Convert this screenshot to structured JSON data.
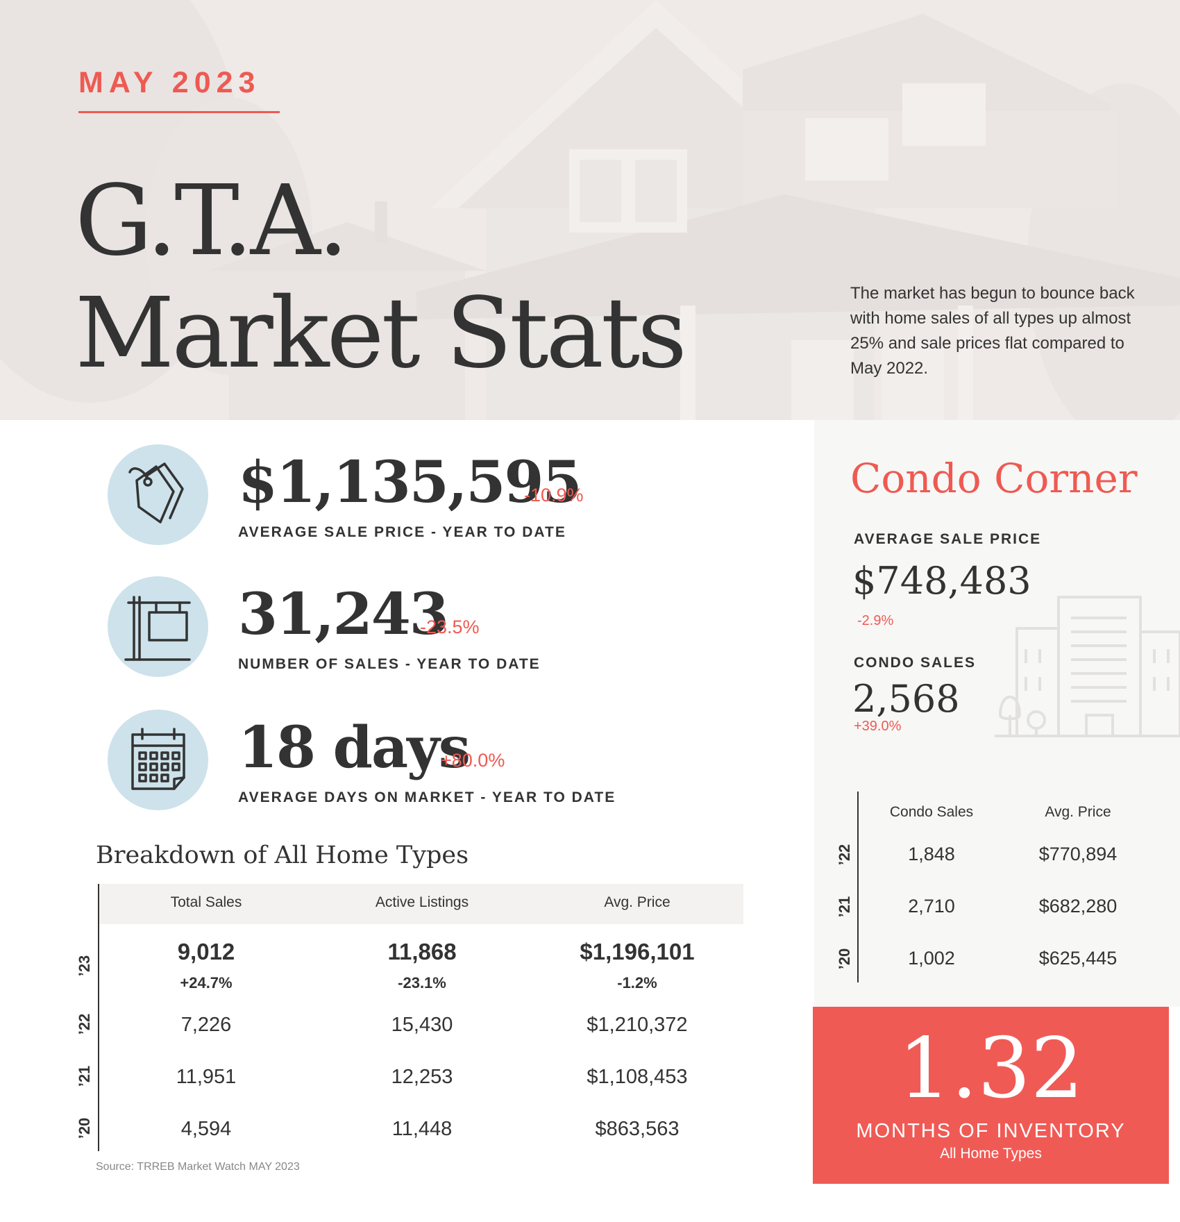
{
  "header": {
    "month": "MAY 2023",
    "title_line1": "G.T.A.",
    "title_line2": "Market Stats",
    "intro": "The market has begun to bounce back with home sales of all types up almost 25% and sale prices flat compared to May 2022."
  },
  "stats": [
    {
      "icon": "price-tags-icon",
      "value": "$1,135,595",
      "change": "-10.9%",
      "label": "AVERAGE SALE PRICE - YEAR TO DATE"
    },
    {
      "icon": "for-sale-sign-icon",
      "value": "31,243",
      "change": "-23.5%",
      "label": "NUMBER OF SALES - YEAR TO DATE"
    },
    {
      "icon": "calendar-icon",
      "value": "18 days",
      "change": "+80.0%",
      "label": "AVERAGE DAYS ON MARKET - YEAR TO DATE"
    }
  ],
  "breakdown": {
    "title": "Breakdown of All Home Types",
    "columns": [
      "Total Sales",
      "Active Listings",
      "Avg. Price"
    ],
    "current": {
      "year": "’23",
      "values": [
        "9,012",
        "11,868",
        "$1,196,101"
      ],
      "changes": [
        "+24.7%",
        "-23.1%",
        "-1.2%"
      ]
    },
    "rows": [
      {
        "year": "’22",
        "values": [
          "7,226",
          "15,430",
          "$1,210,372"
        ]
      },
      {
        "year": "’21",
        "values": [
          "11,951",
          "12,253",
          "$1,108,453"
        ]
      },
      {
        "year": "’20",
        "values": [
          "4,594",
          "11,448",
          "$863,563"
        ]
      }
    ],
    "source": "Source: TRREB Market Watch MAY 2023"
  },
  "condo": {
    "title": "Condo Corner",
    "avg_price_label": "AVERAGE SALE PRICE",
    "avg_price": "$748,483",
    "avg_price_change": "-2.9%",
    "sales_label": "CONDO SALES",
    "sales": "2,568",
    "sales_change": "+39.0%",
    "columns": [
      "Condo Sales",
      "Avg. Price"
    ],
    "rows": [
      {
        "year": "’22",
        "values": [
          "1,848",
          "$770,894"
        ]
      },
      {
        "year": "’21",
        "values": [
          "2,710",
          "$682,280"
        ]
      },
      {
        "year": "’20",
        "values": [
          "1,002",
          "$625,445"
        ]
      }
    ]
  },
  "inventory": {
    "value": "1.32",
    "label": "MONTHS OF INVENTORY",
    "sublabel": "All Home Types"
  },
  "colors": {
    "accent": "#ee5a52",
    "inventory_bg": "#f05a55",
    "icon_circle": "#cde2ea",
    "text": "#333333",
    "hero_bg": "#efeae8"
  }
}
